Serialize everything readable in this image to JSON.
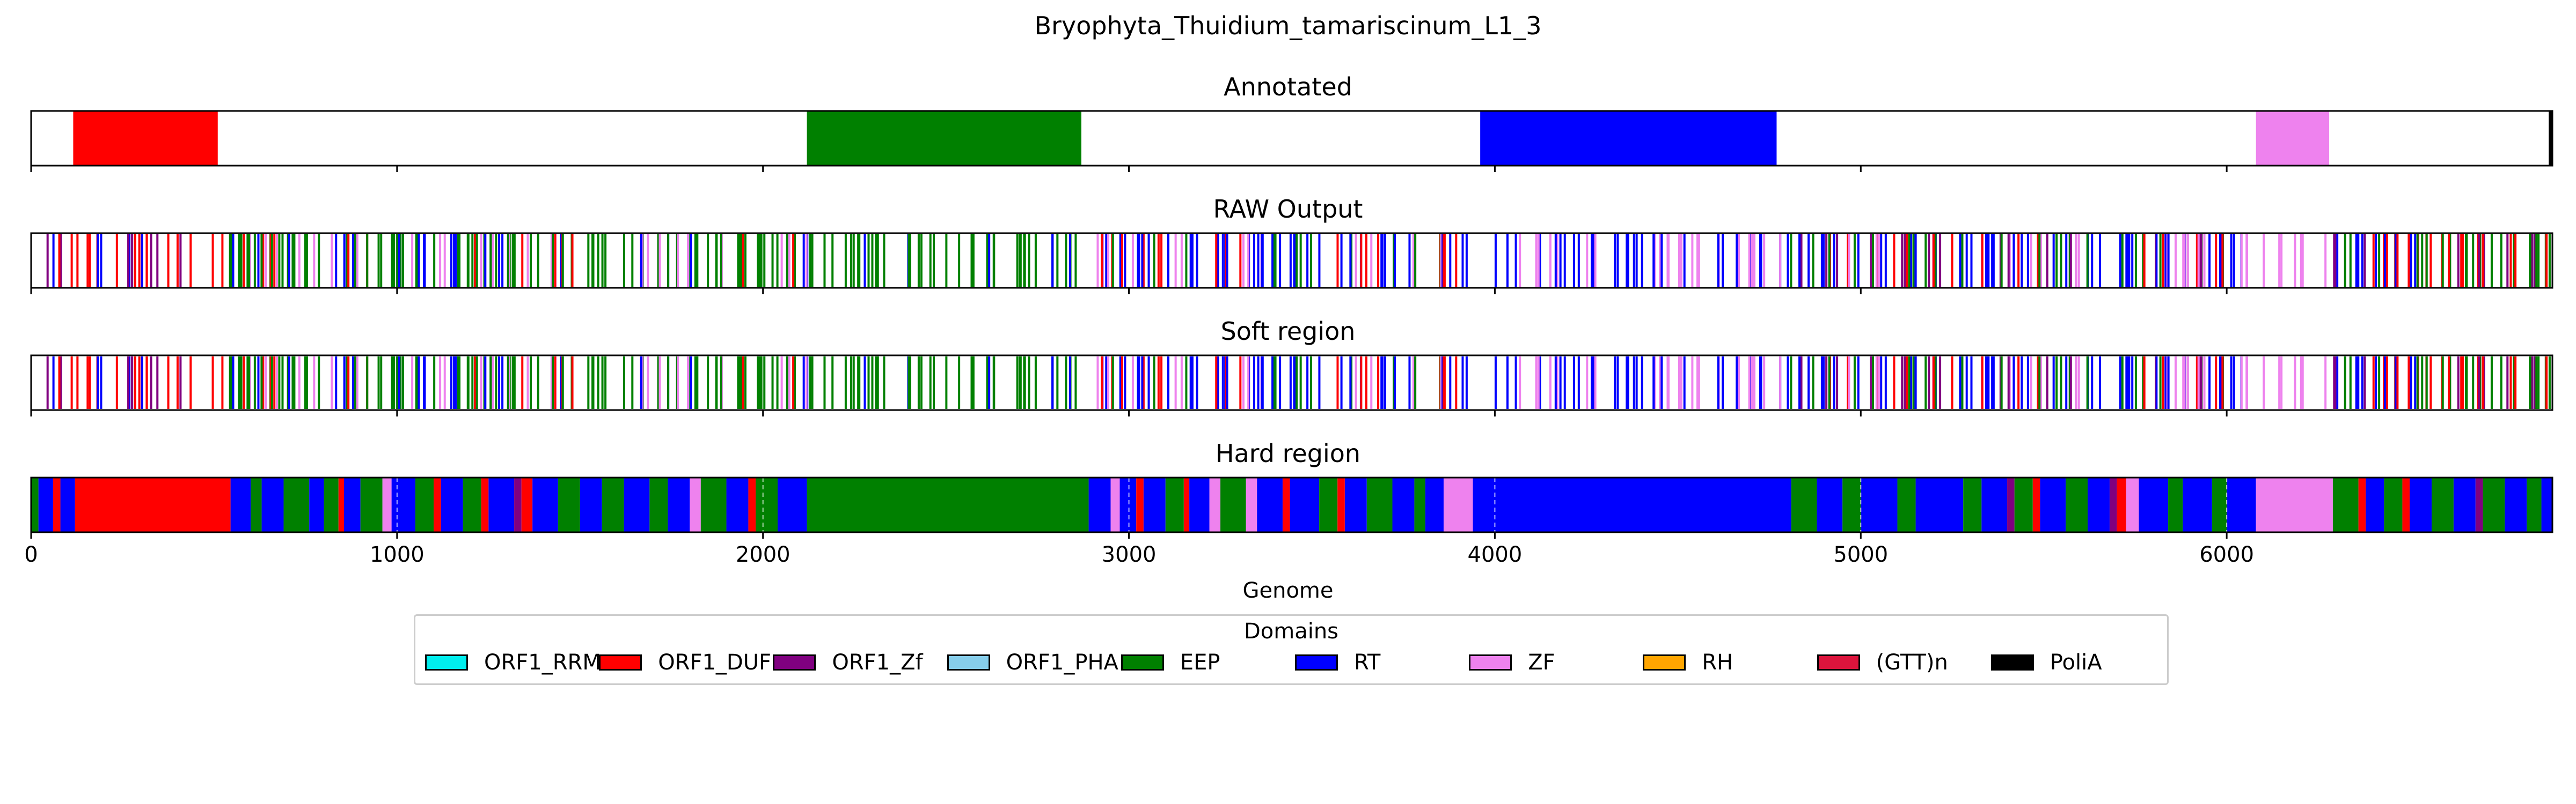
{
  "chart_data": {
    "type": "track",
    "title": "Bryophyta_Thuidium_tamariscinum_L1_3",
    "xlabel": "Genome",
    "xlim": [
      0,
      6890
    ],
    "xticks": [
      0,
      1000,
      2000,
      3000,
      4000,
      5000,
      6000
    ],
    "legend": {
      "title": "Domains",
      "placement": "bottom-center",
      "entries": [
        {
          "name": "ORF1_RRM",
          "color": "#00eeee"
        },
        {
          "name": "ORF1_DUF",
          "color": "#ff0000"
        },
        {
          "name": "ORF1_Zf",
          "color": "#800080"
        },
        {
          "name": "ORF1_PHA",
          "color": "#87ceeb"
        },
        {
          "name": "EEP",
          "color": "#008000"
        },
        {
          "name": "RT",
          "color": "#0000ff"
        },
        {
          "name": "ZF",
          "color": "#ee82ee"
        },
        {
          "name": "RH",
          "color": "#ffa500"
        },
        {
          "name": "(GTT)n",
          "color": "#dc143c"
        },
        {
          "name": "PoliA",
          "color": "#000000"
        }
      ]
    },
    "panels": [
      {
        "title": "Annotated",
        "style": "blocks",
        "segments": [
          {
            "domain": "ORF1_DUF",
            "start": 115,
            "end": 510
          },
          {
            "domain": "EEP",
            "start": 2120,
            "end": 2870
          },
          {
            "domain": "RT",
            "start": 3960,
            "end": 4770
          },
          {
            "domain": "ZF",
            "start": 6080,
            "end": 6280
          },
          {
            "domain": "PoliA",
            "start": 6880,
            "end": 6890
          }
        ]
      },
      {
        "title": "RAW Output",
        "style": "lines",
        "regions": [
          {
            "start": 10,
            "end": 540,
            "mix": [
              "ORF1_DUF",
              "RT",
              "ORF1_DUF",
              "ORF1_Zf",
              "ORF1_DUF"
            ],
            "n": 30
          },
          {
            "start": 540,
            "end": 2130,
            "mix": [
              "EEP",
              "RT",
              "EEP",
              "ORF1_DUF",
              "ZF",
              "EEP"
            ],
            "n": 150
          },
          {
            "start": 2130,
            "end": 2900,
            "mix": [
              "EEP",
              "EEP",
              "RT"
            ],
            "n": 45
          },
          {
            "start": 2900,
            "end": 3930,
            "mix": [
              "RT",
              "EEP",
              "ORF1_DUF",
              "ZF",
              "RT"
            ],
            "n": 90
          },
          {
            "start": 3930,
            "end": 4800,
            "mix": [
              "RT",
              "RT",
              "ZF"
            ],
            "n": 55
          },
          {
            "start": 4800,
            "end": 6050,
            "mix": [
              "RT",
              "EEP",
              "ORF1_Zf",
              "ORF1_DUF",
              "RT",
              "ZF"
            ],
            "n": 120
          },
          {
            "start": 6050,
            "end": 6290,
            "mix": [
              "ZF"
            ],
            "n": 10
          },
          {
            "start": 6290,
            "end": 6885,
            "mix": [
              "EEP",
              "RT",
              "ORF1_DUF",
              "ORF1_Zf",
              "EEP"
            ],
            "n": 60
          }
        ]
      },
      {
        "title": "Soft region",
        "style": "lines",
        "regions": [
          {
            "start": 10,
            "end": 540,
            "mix": [
              "ORF1_DUF",
              "RT",
              "ORF1_DUF",
              "ORF1_Zf",
              "ORF1_DUF"
            ],
            "n": 30
          },
          {
            "start": 540,
            "end": 2130,
            "mix": [
              "EEP",
              "RT",
              "EEP",
              "ORF1_DUF",
              "ZF",
              "EEP"
            ],
            "n": 150
          },
          {
            "start": 2130,
            "end": 2900,
            "mix": [
              "EEP",
              "EEP",
              "RT"
            ],
            "n": 45
          },
          {
            "start": 2900,
            "end": 3930,
            "mix": [
              "RT",
              "EEP",
              "ORF1_DUF",
              "ZF",
              "RT"
            ],
            "n": 90
          },
          {
            "start": 3930,
            "end": 4800,
            "mix": [
              "RT",
              "RT",
              "ZF"
            ],
            "n": 55
          },
          {
            "start": 4800,
            "end": 6050,
            "mix": [
              "RT",
              "EEP",
              "ORF1_Zf",
              "ORF1_DUF",
              "RT",
              "ZF"
            ],
            "n": 120
          },
          {
            "start": 6050,
            "end": 6290,
            "mix": [
              "ZF"
            ],
            "n": 10
          },
          {
            "start": 6290,
            "end": 6885,
            "mix": [
              "EEP",
              "RT",
              "ORF1_DUF",
              "ORF1_Zf",
              "EEP"
            ],
            "n": 60
          }
        ]
      },
      {
        "title": "Hard region",
        "style": "blocks",
        "segments": [
          {
            "domain": "EEP",
            "start": 0,
            "end": 20
          },
          {
            "domain": "RT",
            "start": 20,
            "end": 60
          },
          {
            "domain": "ORF1_DUF",
            "start": 60,
            "end": 80
          },
          {
            "domain": "RT",
            "start": 80,
            "end": 120
          },
          {
            "domain": "ORF1_DUF",
            "start": 120,
            "end": 545
          },
          {
            "domain": "RT",
            "start": 545,
            "end": 600
          },
          {
            "domain": "EEP",
            "start": 600,
            "end": 630
          },
          {
            "domain": "RT",
            "start": 630,
            "end": 690
          },
          {
            "domain": "EEP",
            "start": 690,
            "end": 760
          },
          {
            "domain": "RT",
            "start": 760,
            "end": 800
          },
          {
            "domain": "EEP",
            "start": 800,
            "end": 840
          },
          {
            "domain": "ORF1_DUF",
            "start": 840,
            "end": 855
          },
          {
            "domain": "RT",
            "start": 855,
            "end": 900
          },
          {
            "domain": "EEP",
            "start": 900,
            "end": 960
          },
          {
            "domain": "ZF",
            "start": 960,
            "end": 985
          },
          {
            "domain": "RT",
            "start": 985,
            "end": 1050
          },
          {
            "domain": "EEP",
            "start": 1050,
            "end": 1100
          },
          {
            "domain": "ORF1_DUF",
            "start": 1100,
            "end": 1120
          },
          {
            "domain": "RT",
            "start": 1120,
            "end": 1180
          },
          {
            "domain": "EEP",
            "start": 1180,
            "end": 1230
          },
          {
            "domain": "ORF1_DUF",
            "start": 1230,
            "end": 1250
          },
          {
            "domain": "RT",
            "start": 1250,
            "end": 1320
          },
          {
            "domain": "ORF1_Zf",
            "start": 1320,
            "end": 1340
          },
          {
            "domain": "ORF1_DUF",
            "start": 1340,
            "end": 1370
          },
          {
            "domain": "RT",
            "start": 1370,
            "end": 1440
          },
          {
            "domain": "EEP",
            "start": 1440,
            "end": 1500
          },
          {
            "domain": "RT",
            "start": 1500,
            "end": 1560
          },
          {
            "domain": "EEP",
            "start": 1560,
            "end": 1620
          },
          {
            "domain": "RT",
            "start": 1620,
            "end": 1690
          },
          {
            "domain": "EEP",
            "start": 1690,
            "end": 1740
          },
          {
            "domain": "RT",
            "start": 1740,
            "end": 1800
          },
          {
            "domain": "ZF",
            "start": 1800,
            "end": 1830
          },
          {
            "domain": "EEP",
            "start": 1830,
            "end": 1900
          },
          {
            "domain": "RT",
            "start": 1900,
            "end": 1960
          },
          {
            "domain": "ORF1_DUF",
            "start": 1960,
            "end": 1980
          },
          {
            "domain": "EEP",
            "start": 1980,
            "end": 2040
          },
          {
            "domain": "RT",
            "start": 2040,
            "end": 2120
          },
          {
            "domain": "EEP",
            "start": 2120,
            "end": 2890
          },
          {
            "domain": "RT",
            "start": 2890,
            "end": 2950
          },
          {
            "domain": "ZF",
            "start": 2950,
            "end": 2975
          },
          {
            "domain": "RT",
            "start": 2975,
            "end": 3020
          },
          {
            "domain": "ORF1_DUF",
            "start": 3020,
            "end": 3040
          },
          {
            "domain": "RT",
            "start": 3040,
            "end": 3100
          },
          {
            "domain": "EEP",
            "start": 3100,
            "end": 3150
          },
          {
            "domain": "ORF1_DUF",
            "start": 3150,
            "end": 3165
          },
          {
            "domain": "RT",
            "start": 3165,
            "end": 3220
          },
          {
            "domain": "ZF",
            "start": 3220,
            "end": 3250
          },
          {
            "domain": "EEP",
            "start": 3250,
            "end": 3320
          },
          {
            "domain": "ZF",
            "start": 3320,
            "end": 3350
          },
          {
            "domain": "RT",
            "start": 3350,
            "end": 3420
          },
          {
            "domain": "ORF1_DUF",
            "start": 3420,
            "end": 3440
          },
          {
            "domain": "RT",
            "start": 3440,
            "end": 3520
          },
          {
            "domain": "EEP",
            "start": 3520,
            "end": 3570
          },
          {
            "domain": "ORF1_DUF",
            "start": 3570,
            "end": 3590
          },
          {
            "domain": "RT",
            "start": 3590,
            "end": 3650
          },
          {
            "domain": "EEP",
            "start": 3650,
            "end": 3720
          },
          {
            "domain": "RT",
            "start": 3720,
            "end": 3780
          },
          {
            "domain": "EEP",
            "start": 3780,
            "end": 3810
          },
          {
            "domain": "RT",
            "start": 3810,
            "end": 3860
          },
          {
            "domain": "ZF",
            "start": 3860,
            "end": 3940
          },
          {
            "domain": "RT",
            "start": 3940,
            "end": 4810
          },
          {
            "domain": "EEP",
            "start": 4810,
            "end": 4880
          },
          {
            "domain": "RT",
            "start": 4880,
            "end": 4950
          },
          {
            "domain": "EEP",
            "start": 4950,
            "end": 5000
          },
          {
            "domain": "RT",
            "start": 5000,
            "end": 5100
          },
          {
            "domain": "EEP",
            "start": 5100,
            "end": 5150
          },
          {
            "domain": "RT",
            "start": 5150,
            "end": 5280
          },
          {
            "domain": "EEP",
            "start": 5280,
            "end": 5330
          },
          {
            "domain": "RT",
            "start": 5330,
            "end": 5400
          },
          {
            "domain": "ORF1_Zf",
            "start": 5400,
            "end": 5420
          },
          {
            "domain": "EEP",
            "start": 5420,
            "end": 5470
          },
          {
            "domain": "ORF1_DUF",
            "start": 5470,
            "end": 5490
          },
          {
            "domain": "RT",
            "start": 5490,
            "end": 5560
          },
          {
            "domain": "EEP",
            "start": 5560,
            "end": 5620
          },
          {
            "domain": "RT",
            "start": 5620,
            "end": 5680
          },
          {
            "domain": "ORF1_Zf",
            "start": 5680,
            "end": 5700
          },
          {
            "domain": "ORF1_DUF",
            "start": 5700,
            "end": 5725
          },
          {
            "domain": "ZF",
            "start": 5725,
            "end": 5760
          },
          {
            "domain": "RT",
            "start": 5760,
            "end": 5840
          },
          {
            "domain": "EEP",
            "start": 5840,
            "end": 5880
          },
          {
            "domain": "RT",
            "start": 5880,
            "end": 5960
          },
          {
            "domain": "EEP",
            "start": 5960,
            "end": 6000
          },
          {
            "domain": "RT",
            "start": 6000,
            "end": 6080
          },
          {
            "domain": "ZF",
            "start": 6080,
            "end": 6290
          },
          {
            "domain": "EEP",
            "start": 6290,
            "end": 6360
          },
          {
            "domain": "ORF1_DUF",
            "start": 6360,
            "end": 6380
          },
          {
            "domain": "RT",
            "start": 6380,
            "end": 6430
          },
          {
            "domain": "EEP",
            "start": 6430,
            "end": 6480
          },
          {
            "domain": "ORF1_DUF",
            "start": 6480,
            "end": 6500
          },
          {
            "domain": "RT",
            "start": 6500,
            "end": 6560
          },
          {
            "domain": "EEP",
            "start": 6560,
            "end": 6620
          },
          {
            "domain": "RT",
            "start": 6620,
            "end": 6680
          },
          {
            "domain": "ORF1_Zf",
            "start": 6680,
            "end": 6700
          },
          {
            "domain": "EEP",
            "start": 6700,
            "end": 6760
          },
          {
            "domain": "RT",
            "start": 6760,
            "end": 6820
          },
          {
            "domain": "EEP",
            "start": 6820,
            "end": 6860
          },
          {
            "domain": "RT",
            "start": 6860,
            "end": 6890
          }
        ]
      }
    ]
  }
}
